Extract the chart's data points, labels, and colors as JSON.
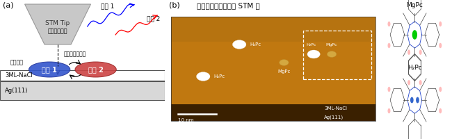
{
  "panel_a_label": "(a)",
  "panel_b_label": "(b)",
  "stm_tip_label": "STM Tip",
  "emission1_label": "発光 1",
  "emission2_label": "発光 2",
  "tunnel_label": "トンネル電流",
  "local_excite_label": "局所励起",
  "energy_transfer_label": "エネルギー移動",
  "mol1_label": "分子 1",
  "mol2_label": "分子 2",
  "nacl_label": "3ML-NaCl",
  "ag_label": "Ag(111)",
  "stm_title": "実験に用いた試料の STM 像",
  "stm_nacl_label": "3ML-NaCl",
  "stm_ag_label": "Ag(111)",
  "scale_label": "10 nm",
  "mgpc_label": "MgPc",
  "h2pc_label": "H₂Pc",
  "bg_color": "#ffffff",
  "tip_color": "#c8c8c8",
  "tip_edge_color": "#999999",
  "mol1_color": "#3355cc",
  "mol2_color": "#cc4444",
  "nacl_bg": "#ffffff",
  "ag_bg": "#d8d8d8",
  "stm_bg": "#c07800",
  "stm_dark": "#4a2800",
  "stm_stripe": "#b06800"
}
